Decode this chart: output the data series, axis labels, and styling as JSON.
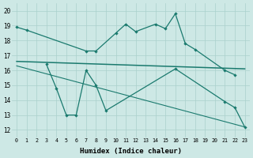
{
  "line1_x": [
    0,
    1,
    7,
    8,
    10,
    11,
    12,
    14,
    15,
    16,
    17,
    18,
    21,
    22
  ],
  "line1_y": [
    18.9,
    18.7,
    17.3,
    17.3,
    18.5,
    19.1,
    18.6,
    19.1,
    18.8,
    19.8,
    17.8,
    17.4,
    16.0,
    15.7
  ],
  "line2_x": [
    3,
    4,
    5,
    6,
    7,
    8,
    9,
    16,
    21,
    22,
    23
  ],
  "line2_y": [
    16.4,
    14.8,
    13.0,
    13.0,
    16.0,
    15.0,
    13.3,
    16.1,
    13.9,
    13.5,
    12.2
  ],
  "regline1_x": [
    0,
    23
  ],
  "regline1_y": [
    16.6,
    16.1
  ],
  "regline2_x": [
    0,
    23
  ],
  "regline2_y": [
    16.3,
    12.2
  ],
  "bg_color": "#cde8e5",
  "grid_color": "#aad0cc",
  "line_color": "#1a7a6e",
  "ylabel_ticks": [
    12,
    13,
    14,
    15,
    16,
    17,
    18,
    19,
    20
  ],
  "xlabel": "Humidex (Indice chaleur)",
  "ylim": [
    11.5,
    20.5
  ],
  "xlim": [
    -0.5,
    23.5
  ]
}
